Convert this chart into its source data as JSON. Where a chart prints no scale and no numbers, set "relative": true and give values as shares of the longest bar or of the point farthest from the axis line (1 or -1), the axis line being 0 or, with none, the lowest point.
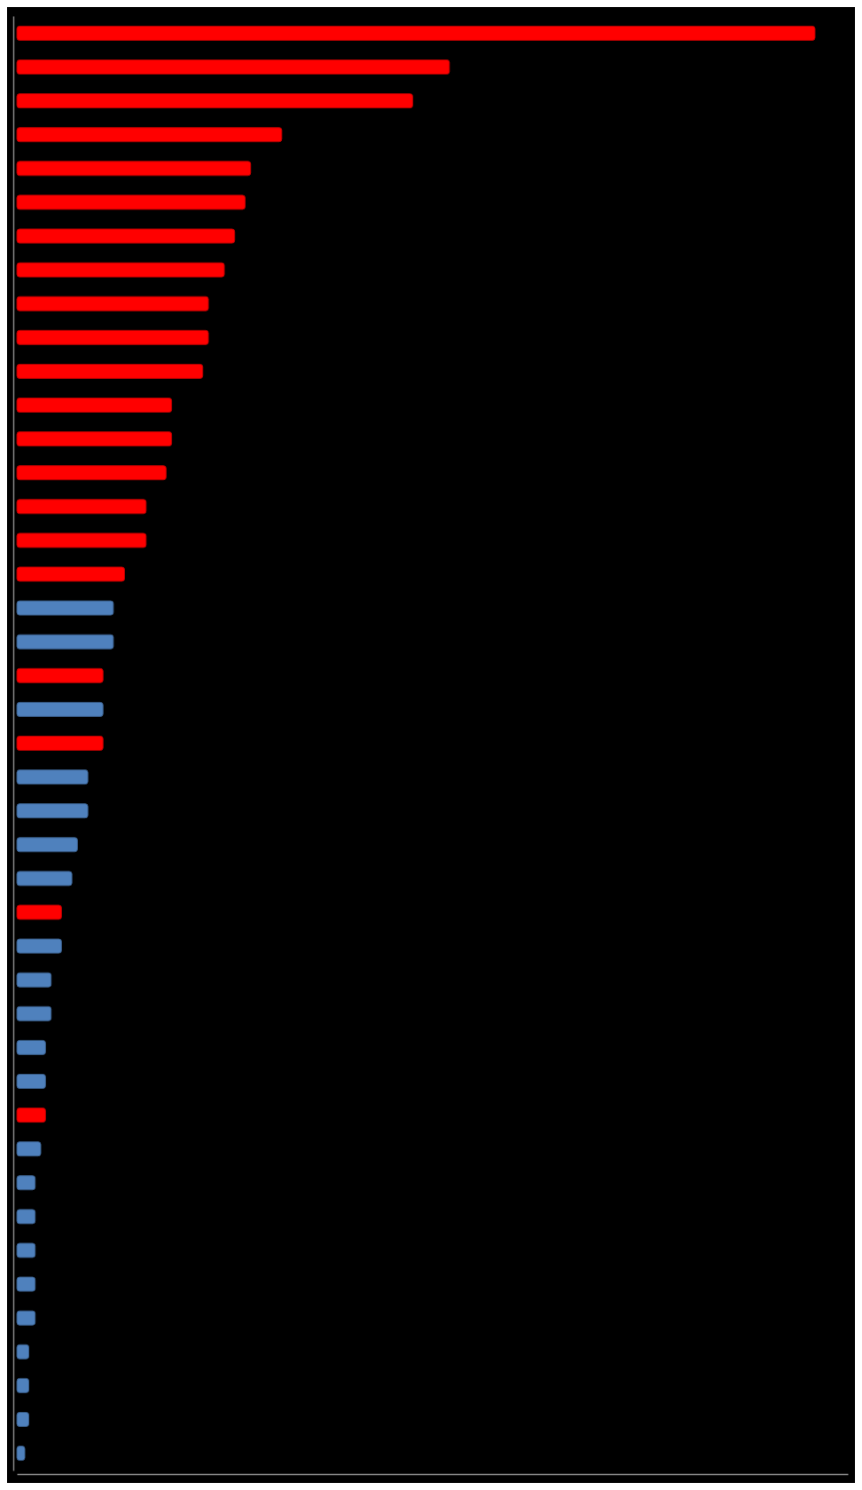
{
  "chart_data": {
    "type": "bar",
    "orientation": "horizontal",
    "relative": true,
    "categories": [
      null,
      null,
      null,
      null,
      null,
      null,
      null,
      null,
      null,
      null,
      null,
      null,
      null,
      null,
      null,
      null,
      null,
      null,
      null,
      null,
      null,
      null,
      null,
      null,
      null,
      null,
      null,
      null,
      null,
      null,
      null,
      null,
      null,
      null,
      null,
      null,
      null,
      null,
      null,
      null,
      null,
      null,
      null
    ],
    "values": [
      1,
      0.542,
      0.496,
      0.332,
      0.293,
      0.286,
      0.273,
      0.26,
      0.24,
      0.24,
      0.233,
      0.194,
      0.194,
      0.187,
      0.162,
      0.162,
      0.135,
      0.121,
      0.121,
      0.108,
      0.108,
      0.108,
      0.089,
      0.089,
      0.076,
      0.069,
      0.056,
      0.056,
      0.043,
      0.043,
      0.036,
      0.036,
      0.036,
      0.03,
      0.023,
      0.023,
      0.023,
      0.023,
      0.023,
      0.015,
      0.015,
      0.015,
      0.01
    ],
    "colors": [
      "#ff0000",
      "#ff0000",
      "#ff0000",
      "#ff0000",
      "#ff0000",
      "#ff0000",
      "#ff0000",
      "#ff0000",
      "#ff0000",
      "#ff0000",
      "#ff0000",
      "#ff0000",
      "#ff0000",
      "#ff0000",
      "#ff0000",
      "#ff0000",
      "#ff0000",
      "#4f81bd",
      "#4f81bd",
      "#ff0000",
      "#4f81bd",
      "#ff0000",
      "#4f81bd",
      "#4f81bd",
      "#4f81bd",
      "#4f81bd",
      "#ff0000",
      "#4f81bd",
      "#4f81bd",
      "#4f81bd",
      "#4f81bd",
      "#4f81bd",
      "#ff0000",
      "#4f81bd",
      "#4f81bd",
      "#4f81bd",
      "#4f81bd",
      "#4f81bd",
      "#4f81bd",
      "#4f81bd",
      "#4f81bd",
      "#4f81bd",
      "#4f81bd"
    ]
  }
}
